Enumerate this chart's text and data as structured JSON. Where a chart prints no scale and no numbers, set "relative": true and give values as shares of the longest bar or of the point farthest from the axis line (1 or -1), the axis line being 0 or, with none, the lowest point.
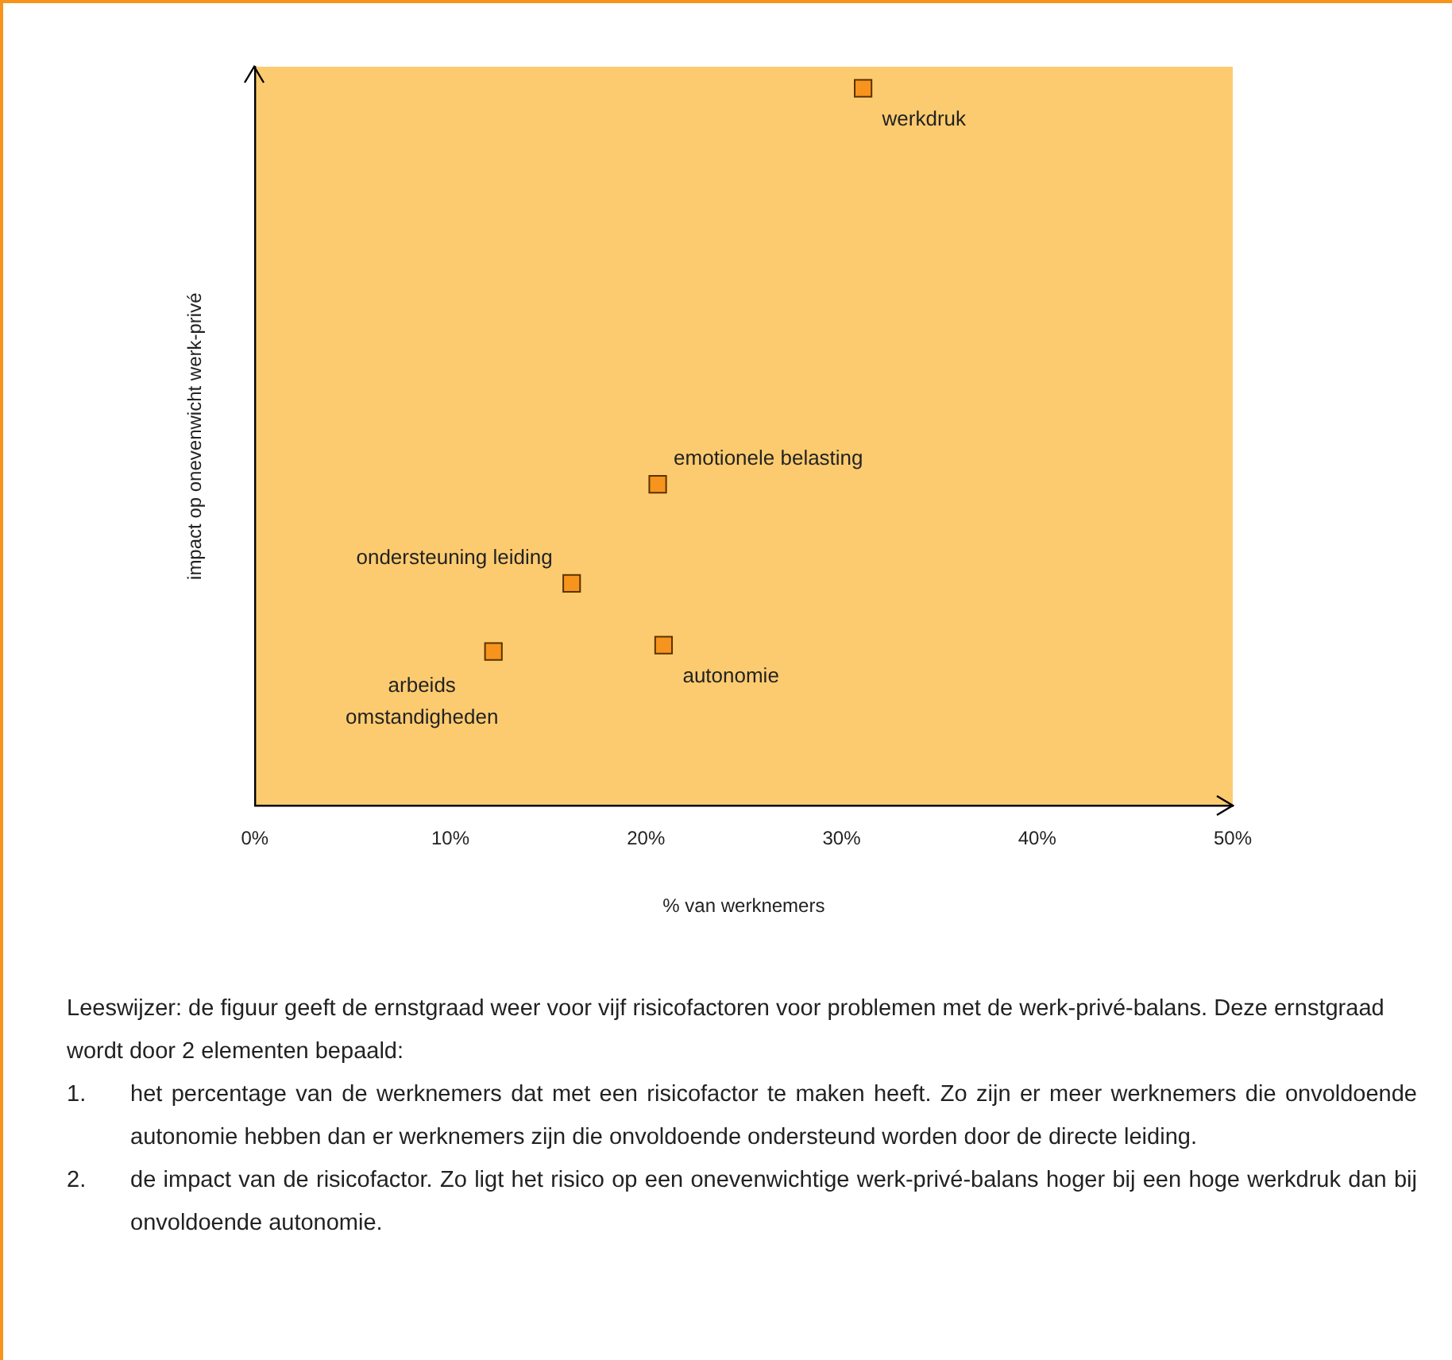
{
  "chart_data": {
    "type": "scatter",
    "relative": true,
    "xlabel": "% van werknemers",
    "ylabel": "impact op onevenwicht werk-privé",
    "x": [
      31.1,
      20.6,
      16.2,
      12.2,
      20.9
    ],
    "values": [
      1,
      0.448,
      0.31,
      0.215,
      0.224
    ],
    "color": "#f7941d",
    "marker": "square",
    "grid": false,
    "legend": false,
    "xlim": [
      0,
      50
    ],
    "xticks": [
      {
        "value": 0,
        "label": "0%"
      },
      {
        "value": 10,
        "label": "10%"
      },
      {
        "value": 20,
        "label": "20%"
      },
      {
        "value": 30,
        "label": "30%"
      },
      {
        "value": 40,
        "label": "40%"
      },
      {
        "value": 50,
        "label": "50%"
      }
    ],
    "annotations": [
      {
        "text": "werkdruk",
        "x": 31.1,
        "y": 1
      },
      {
        "text": "emotionele belasting",
        "x": 20.6,
        "y": 0.448
      },
      {
        "text": "ondersteuning leiding",
        "x": 16.2,
        "y": 0.31
      },
      {
        "text": "arbeids omstandigheden",
        "x": 12.2,
        "y": 0.215
      },
      {
        "text": "autonomie",
        "x": 20.9,
        "y": 0.224
      },
      "Leeswijzer: de figuur geeft de ernstgraad weer voor vijf risicofactoren voor problemen met de werk-privé-balans. Deze ernstgraad wordt door 2 elementen bepaald:",
      "1. het percentage van de werknemers dat met een risicofactor te maken heeft. Zo zijn er meer werknemers die onvoldoende autonomie hebben dan er werknemers zijn die onvoldoende ondersteund worden door de directe leiding.",
      "2. de impact van de risicofactor. Zo ligt het risico op een onevenwichtige werk-privé-balans hoger bij een hoge werkdruk dan bij onvoldoende autonomie."
    ]
  }
}
